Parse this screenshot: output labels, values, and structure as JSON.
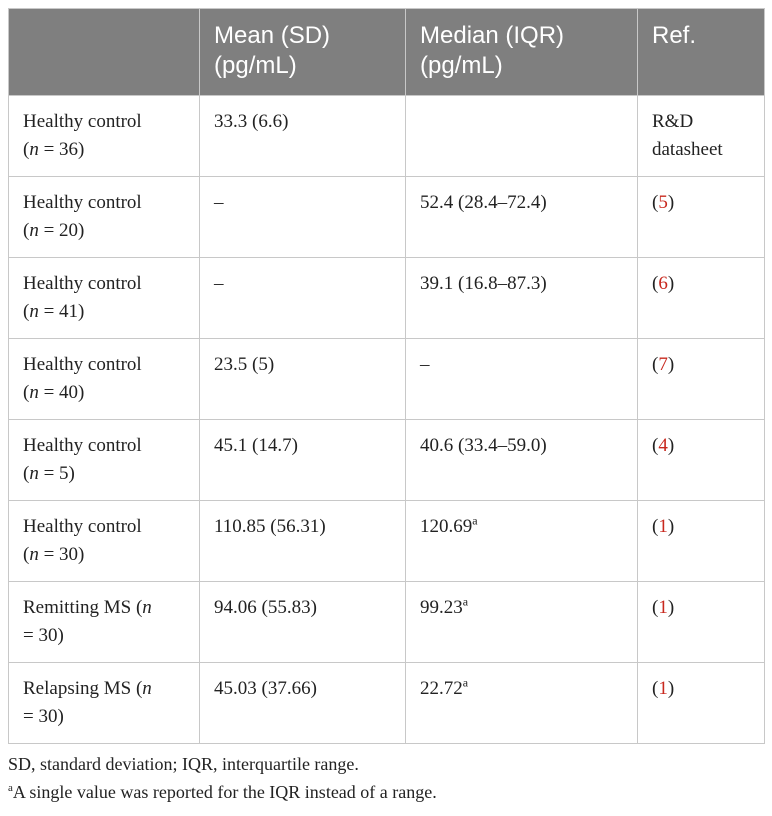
{
  "table": {
    "headers": [
      "",
      "Mean (SD)\n(pg/mL)",
      "Median (IQR)\n(pg/mL)",
      "Ref."
    ],
    "header_lines": [
      [
        "",
        ""
      ],
      [
        "Mean (SD)",
        "(pg/mL)"
      ],
      [
        "Median (IQR)",
        "(pg/mL)"
      ],
      [
        "Ref.",
        ""
      ]
    ],
    "rows": [
      {
        "group": "Healthy control",
        "n_prefix": "(",
        "n": "n",
        "n_suffix": " = 36)",
        "mean": "33.3 (6.6)",
        "median": "",
        "median_sup": "",
        "ref_pre": "",
        "ref": "",
        "ref_post": "",
        "ref_text": "R&D datasheet"
      },
      {
        "group": "Healthy control",
        "n_prefix": "(",
        "n": "n",
        "n_suffix": " = 20)",
        "mean": "–",
        "median": "52.4 (28.4–72.4)",
        "median_sup": "",
        "ref_pre": "(",
        "ref": "5",
        "ref_post": ")",
        "ref_text": ""
      },
      {
        "group": "Healthy control",
        "n_prefix": "(",
        "n": "n",
        "n_suffix": " = 41)",
        "mean": "–",
        "median": "39.1 (16.8–87.3)",
        "median_sup": "",
        "ref_pre": "(",
        "ref": "6",
        "ref_post": ")",
        "ref_text": ""
      },
      {
        "group": "Healthy control",
        "n_prefix": "(",
        "n": "n",
        "n_suffix": " = 40)",
        "mean": "23.5 (5)",
        "median": "–",
        "median_sup": "",
        "ref_pre": "(",
        "ref": "7",
        "ref_post": ")",
        "ref_text": ""
      },
      {
        "group": "Healthy control",
        "n_prefix": "(",
        "n": "n",
        "n_suffix": " = 5)",
        "mean": "45.1 (14.7)",
        "median": "40.6 (33.4–59.0)",
        "median_sup": "",
        "ref_pre": "(",
        "ref": "4",
        "ref_post": ")",
        "ref_text": ""
      },
      {
        "group": "Healthy control",
        "n_prefix": "(",
        "n": "n",
        "n_suffix": " = 30)",
        "mean": "110.85 (56.31)",
        "median": "120.69",
        "median_sup": "a",
        "ref_pre": "(",
        "ref": "1",
        "ref_post": ")",
        "ref_text": ""
      },
      {
        "group": "Remitting MS (",
        "n_prefix": "",
        "n": "n",
        "n_suffix": "",
        "line2": "= 30)",
        "mean": "94.06 (55.83)",
        "median": "99.23",
        "median_sup": "a",
        "ref_pre": "(",
        "ref": "1",
        "ref_post": ")",
        "ref_text": ""
      },
      {
        "group": "Relapsing MS (",
        "n_prefix": "",
        "n": "n",
        "n_suffix": "",
        "line2": "= 30)",
        "mean": "45.03 (37.66)",
        "median": "22.72",
        "median_sup": "a",
        "ref_pre": "(",
        "ref": "1",
        "ref_post": ")",
        "ref_text": ""
      }
    ]
  },
  "footnotes": {
    "abbrev": "SD, standard deviation; IQR, interquartile range.",
    "a_marker": "a",
    "a_text": "A single value was reported for the IQR instead of a range."
  },
  "colors": {
    "header_bg": "#7f7f7f",
    "header_text": "#ffffff",
    "ref_link": "#c8281e",
    "border": "#c8c8c8"
  }
}
